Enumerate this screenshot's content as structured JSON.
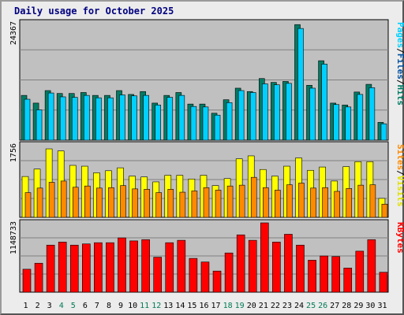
{
  "title": "Daily usage for October 2025",
  "colors": {
    "pages": "#006c4e",
    "files": "#00d0ff",
    "hits": "#007b64",
    "visits": "#ffff00",
    "sites": "#ff8a00",
    "kbytes": "#ff0000",
    "weekend_label": "#007a55",
    "weekday_label": "#000000"
  },
  "chart_data": {
    "type": "bar",
    "days": [
      "1",
      "2",
      "3",
      "4",
      "5",
      "6",
      "7",
      "8",
      "9",
      "10",
      "11",
      "12",
      "13",
      "14",
      "15",
      "16",
      "17",
      "18",
      "19",
      "20",
      "21",
      "22",
      "23",
      "24",
      "25",
      "26",
      "27",
      "28",
      "29",
      "30",
      "31"
    ],
    "weekend_days": [
      "4",
      "5",
      "11",
      "12",
      "18",
      "19",
      "25",
      "26"
    ],
    "panels": [
      {
        "id": "hits-panel",
        "max_label": "24367",
        "ylim": [
          0,
          24367
        ],
        "legend": [
          {
            "text": "Pages",
            "color": "#00d0ff"
          },
          {
            "text": "/",
            "color": "#000000"
          },
          {
            "text": "Files",
            "color": "#0050a0"
          },
          {
            "text": "/",
            "color": "#000000"
          },
          {
            "text": "Hits",
            "color": "#007b64"
          }
        ],
        "series": [
          {
            "name": "Hits",
            "values": [
              9300,
              7700,
              10300,
              9700,
              9700,
              9900,
              9300,
              9300,
              10300,
              9500,
              10100,
              7700,
              9300,
              9900,
              7500,
              7500,
              5600,
              8400,
              10800,
              10100,
              12800,
              12000,
              12200,
              24000,
              11400,
              16500,
              7700,
              7300,
              10000,
              11600,
              3700
            ]
          },
          {
            "name": "Files",
            "values": [
              8500,
              6300,
              9800,
              9000,
              8900,
              9300,
              8800,
              8800,
              9400,
              9200,
              9300,
              7300,
              8900,
              9300,
              7000,
              6900,
              5200,
              7800,
              10300,
              9900,
              11700,
              11500,
              11800,
              23200,
              10800,
              15800,
              7400,
              6900,
              9500,
              10900,
              3400
            ]
          }
        ]
      },
      {
        "id": "visits-panel",
        "max_label": "1756",
        "ylim": [
          0,
          1756
        ],
        "legend": [
          {
            "text": "Sites",
            "color": "#ff8a00"
          },
          {
            "text": "/",
            "color": "#000000"
          },
          {
            "text": "Visits",
            "color": "#e0e000"
          }
        ],
        "series": [
          {
            "name": "Visits",
            "values": [
              990,
              1170,
              1660,
              1610,
              1260,
              1240,
              1080,
              1130,
              1200,
              1000,
              980,
              860,
              1020,
              1020,
              930,
              1020,
              770,
              940,
              1420,
              1490,
              1160,
              1000,
              1240,
              1440,
              1140,
              1220,
              880,
              1230,
              1350,
              1350,
              460
            ]
          },
          {
            "name": "Sites",
            "values": [
              600,
              710,
              850,
              880,
              730,
              760,
              710,
              720,
              770,
              690,
              680,
              600,
              680,
              610,
              640,
              720,
              660,
              760,
              780,
              970,
              720,
              660,
              790,
              830,
              710,
              720,
              630,
              700,
              780,
              790,
              320
            ]
          }
        ]
      },
      {
        "id": "kbytes-panel",
        "max_label": "1148733",
        "ylim": [
          0,
          1148733
        ],
        "legend": [
          {
            "text": "KBytes",
            "color": "#ff0000"
          }
        ],
        "series": [
          {
            "name": "KBytes",
            "values": [
              380000,
              480000,
              780000,
              830000,
              780000,
              800000,
              820000,
              820000,
              900000,
              850000,
              870000,
              580000,
              820000,
              860000,
              560000,
              500000,
              350000,
              650000,
              950000,
              860000,
              1148733,
              830000,
              960000,
              780000,
              530000,
              600000,
              590000,
              400000,
              680000,
              870000,
              330000
            ]
          }
        ]
      }
    ]
  }
}
